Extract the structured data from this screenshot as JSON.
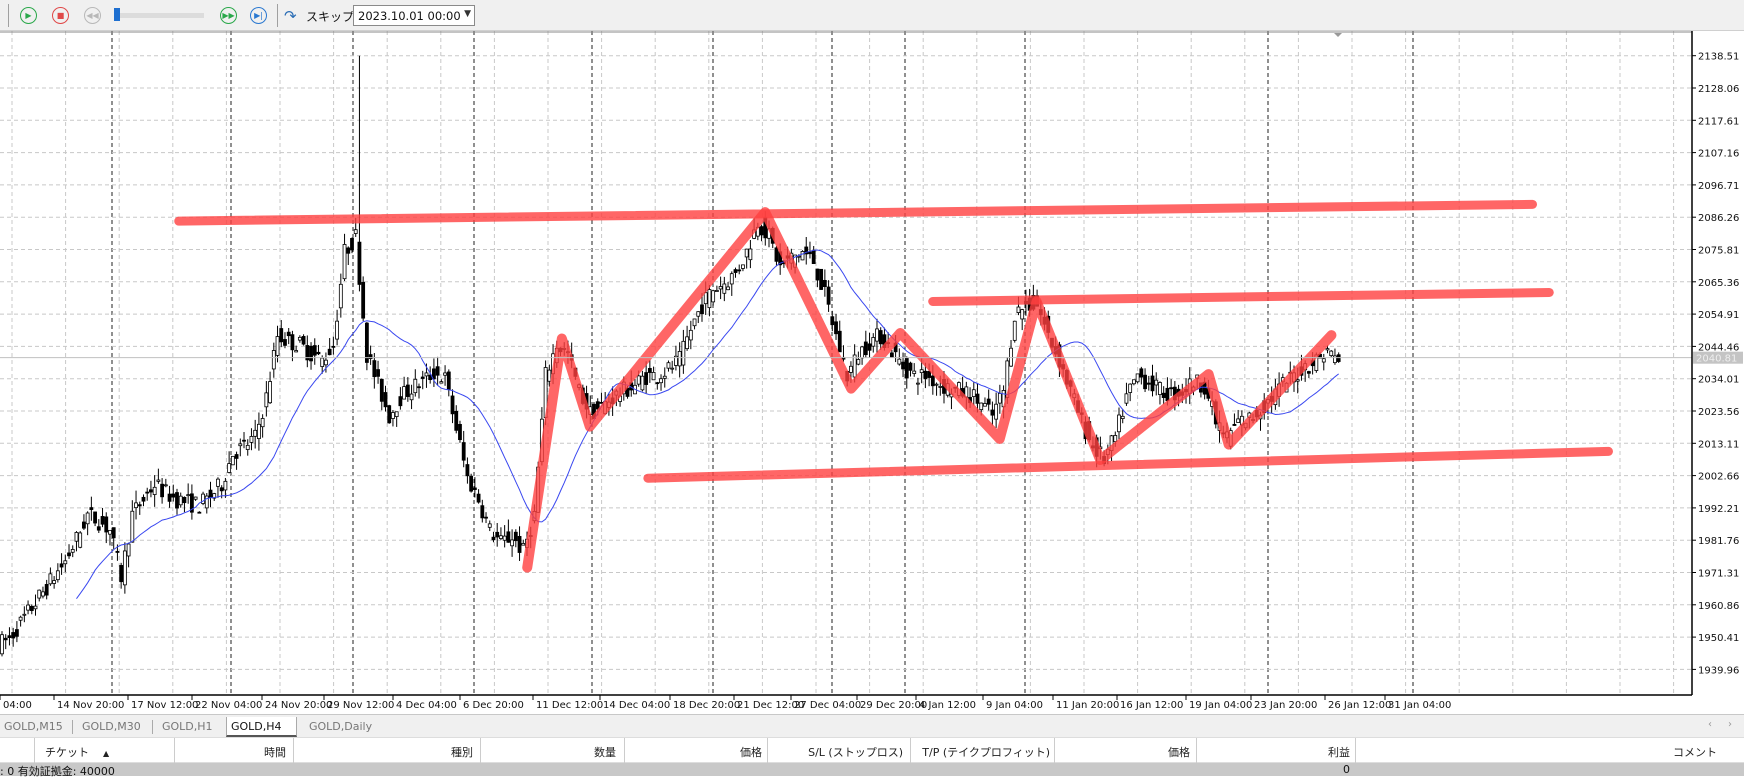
{
  "toolbar": {
    "play_icon": "play-icon",
    "stop_icon": "stop-icon",
    "rewind_icon": "rewind-icon",
    "fast_forward_icon": "fast-forward-icon",
    "step_icon": "step-forward-icon",
    "slider_position": 0.02,
    "skip_label": "スキップ",
    "date_value": "2023.10.01 00:00",
    "colors": {
      "play": "#2aa84a",
      "stop": "#e04848",
      "rewind": "#b0b0b0",
      "step": "#2a78d0"
    }
  },
  "chart_data": {
    "type": "candlestick",
    "symbol_timeframe": "GOLD,H4",
    "y_ticks": [
      "2138.51",
      "2128.06",
      "2117.61",
      "2107.16",
      "2096.71",
      "2086.26",
      "2075.81",
      "2065.36",
      "2054.91",
      "2044.46",
      "2034.01",
      "2023.56",
      "2013.11",
      "2002.66",
      "1992.21",
      "1981.76",
      "1971.31",
      "1960.86",
      "1950.41",
      "1939.96"
    ],
    "ylim": [
      1931.6,
      2146.6
    ],
    "current_price": "2040.81",
    "x_ticks": [
      "04:00",
      "14 Nov 20:00",
      "17 Nov 12:00",
      "22 Nov 04:00",
      "24 Nov 20:00",
      "29 Nov 12:00",
      "4 Dec 04:00",
      "6 Dec 20:00",
      "11 Dec 12:00",
      "14 Dec 04:00",
      "18 Dec 20:00",
      "21 Dec 12:00",
      "27 Dec 04:00",
      "29 Dec 20:00",
      "4 Jan 12:00",
      "9 Jan 04:00",
      "11 Jan 20:00",
      "16 Jan 12:00",
      "19 Jan 04:00",
      "23 Jan 20:00",
      "26 Jan 12:00",
      "31 Jan 04:00"
    ],
    "grid": true,
    "closes": [
      1948,
      1950,
      1955,
      1960,
      1965,
      1970,
      1975,
      1982,
      1990,
      1988,
      1985,
      1970,
      1990,
      1995,
      2000,
      1997,
      1995,
      1994,
      1993,
      1996,
      2000,
      2010,
      2012,
      2015,
      2028,
      2048,
      2046,
      2045,
      2042,
      2040,
      2045,
      2075,
      2080,
      2042,
      2032,
      2022,
      2028,
      2031,
      2033,
      2036,
      2034,
      2018,
      2002,
      1995,
      1985,
      1981,
      1983,
      1978,
      1990,
      2035,
      2045,
      2042,
      2030,
      2023,
      2025,
      2028,
      2030,
      2032,
      2035,
      2035,
      2037,
      2040,
      2050,
      2058,
      2063,
      2065,
      2068,
      2075,
      2085,
      2080,
      2070,
      2073,
      2075,
      2072,
      2061,
      2048,
      2035,
      2042,
      2046,
      2048,
      2043,
      2038,
      2035,
      2035,
      2033,
      2031,
      2030,
      2029,
      2026,
      2022,
      2030,
      2055,
      2058,
      2058,
      2048,
      2040,
      2030,
      2020,
      2012,
      2008,
      2015,
      2028,
      2035,
      2033,
      2030,
      2029,
      2030,
      2033,
      2032,
      2020,
      2015,
      2020,
      2021,
      2024,
      2028,
      2032,
      2035,
      2038,
      2040,
      2043,
      2040
    ],
    "spike": {
      "index": 32,
      "high": 2138.5
    },
    "moving_average_color": "#3a48f0",
    "drawings": {
      "color": "#ff4040",
      "trendlines": [
        [
          [
            16,
            2085.0
          ],
          [
            137.2,
            2090.4
          ]
        ],
        [
          [
            83.5,
            2059.0
          ],
          [
            138.7,
            2061.9
          ]
        ],
        [
          [
            58,
            2001.8
          ],
          [
            144,
            2010.5
          ]
        ]
      ],
      "zigzag": [
        [
          47.2,
          1972.9
        ],
        [
          50.3,
          2047.0
        ],
        [
          52.8,
          2018.5
        ],
        [
          68.5,
          2087.9
        ],
        [
          76.2,
          2030.8
        ],
        [
          80.6,
          2048.8
        ],
        [
          89.5,
          2014.5
        ],
        [
          92.8,
          2059.0
        ],
        [
          98.5,
          2007.7
        ],
        [
          108.2,
          2035.5
        ],
        [
          110,
          2012.7
        ],
        [
          119.2,
          2048.1
        ]
      ]
    }
  },
  "tabs": [
    {
      "label": "GOLD,M15",
      "active": false
    },
    {
      "label": "GOLD,M30",
      "active": false
    },
    {
      "label": "GOLD,H1",
      "active": false
    },
    {
      "label": "GOLD,H4",
      "active": true
    },
    {
      "label": "GOLD,Daily",
      "active": false
    }
  ],
  "table": {
    "columns": [
      "チケット",
      "時間",
      "種別",
      "数量",
      "価格",
      "S/L (ストップロス)",
      "T/P (テイクプロフィット)",
      "価格",
      "利益",
      "コメント"
    ],
    "sort_indicator": "▲"
  },
  "status": {
    "left": ": 0  有効証拠金: 40000",
    "profit": "0"
  }
}
